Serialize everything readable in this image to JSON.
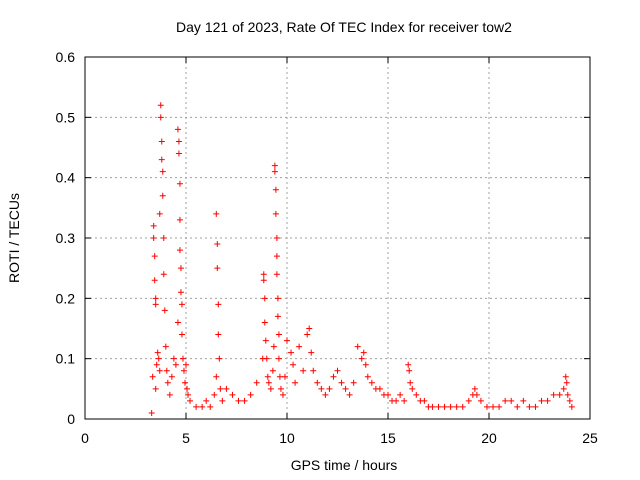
{
  "chart_data": {
    "type": "scatter",
    "title": "Day 121 of 2023, Rate Of TEC Index for receiver tow2",
    "xlabel": "GPS time / hours",
    "ylabel": "ROTI / TECUs",
    "xlim": [
      0,
      25
    ],
    "ylim": [
      0,
      0.6
    ],
    "x_ticks": [
      0,
      5,
      10,
      15,
      20,
      25
    ],
    "x_tick_labels": [
      "0",
      "5",
      "10",
      "15",
      "20",
      "25"
    ],
    "y_ticks": [
      0,
      0.1,
      0.2,
      0.3,
      0.4,
      0.5,
      0.6
    ],
    "y_tick_labels": [
      "0",
      "0.1",
      "0.2",
      "0.3",
      "0.4",
      "0.5",
      "0.6"
    ],
    "grid": true,
    "legend": "none",
    "marker": "plus",
    "color": "#ff0000",
    "series": [
      {
        "x": [
          3.3,
          3.35,
          3.4,
          3.4,
          3.45,
          3.45,
          3.5,
          3.5,
          3.5,
          3.55,
          3.6,
          3.65,
          3.7,
          3.7,
          3.75,
          3.75,
          3.8,
          3.8,
          3.85,
          3.85,
          3.9,
          3.9,
          3.95,
          4.0,
          4.05,
          4.1,
          4.2,
          4.3,
          4.4,
          4.5,
          4.6,
          4.6,
          4.65,
          4.65,
          4.7,
          4.7,
          4.7,
          4.75,
          4.75,
          4.8,
          4.8,
          4.85,
          4.9,
          4.95,
          5.0,
          5.05,
          5.1,
          5.2,
          5.5,
          5.8,
          6.0,
          6.2,
          6.4,
          6.5,
          6.5,
          6.55,
          6.55,
          6.6,
          6.6,
          6.65,
          6.7,
          6.8,
          7.0,
          7.3,
          7.6,
          7.9,
          8.2,
          8.5,
          8.8,
          8.85,
          8.85,
          8.9,
          8.9,
          8.95,
          9.0,
          9.05,
          9.1,
          9.2,
          9.3,
          9.35,
          9.4,
          9.4,
          9.45,
          9.45,
          9.5,
          9.5,
          9.5,
          9.55,
          9.55,
          9.6,
          9.6,
          9.65,
          9.7,
          9.8,
          9.9,
          10.0,
          10.2,
          10.3,
          10.4,
          10.6,
          10.8,
          11.0,
          11.1,
          11.2,
          11.3,
          11.5,
          11.7,
          11.9,
          12.1,
          12.3,
          12.5,
          12.7,
          12.9,
          13.1,
          13.3,
          13.5,
          13.7,
          13.8,
          13.9,
          14.0,
          14.2,
          14.4,
          14.6,
          14.8,
          15.0,
          15.2,
          15.4,
          15.6,
          15.8,
          16.0,
          16.05,
          16.1,
          16.2,
          16.4,
          16.6,
          16.8,
          17.0,
          17.2,
          17.5,
          17.8,
          18.1,
          18.4,
          18.7,
          19.0,
          19.2,
          19.3,
          19.4,
          19.6,
          19.9,
          20.2,
          20.5,
          20.8,
          21.1,
          21.4,
          21.7,
          22.0,
          22.3,
          22.6,
          22.9,
          23.2,
          23.5,
          23.7,
          23.8,
          23.85,
          23.9,
          24.0,
          24.1
        ],
        "y": [
          0.01,
          0.07,
          0.32,
          0.3,
          0.27,
          0.23,
          0.2,
          0.19,
          0.05,
          0.09,
          0.11,
          0.1,
          0.08,
          0.34,
          0.52,
          0.5,
          0.46,
          0.43,
          0.41,
          0.37,
          0.3,
          0.24,
          0.18,
          0.12,
          0.08,
          0.06,
          0.04,
          0.07,
          0.1,
          0.09,
          0.16,
          0.48,
          0.46,
          0.44,
          0.39,
          0.33,
          0.28,
          0.25,
          0.21,
          0.19,
          0.14,
          0.1,
          0.08,
          0.06,
          0.09,
          0.05,
          0.04,
          0.03,
          0.02,
          0.02,
          0.03,
          0.02,
          0.04,
          0.07,
          0.34,
          0.29,
          0.25,
          0.19,
          0.14,
          0.1,
          0.05,
          0.03,
          0.05,
          0.04,
          0.03,
          0.03,
          0.04,
          0.06,
          0.1,
          0.24,
          0.23,
          0.2,
          0.16,
          0.13,
          0.1,
          0.07,
          0.06,
          0.05,
          0.08,
          0.12,
          0.42,
          0.41,
          0.38,
          0.34,
          0.3,
          0.27,
          0.24,
          0.2,
          0.17,
          0.14,
          0.1,
          0.07,
          0.05,
          0.04,
          0.07,
          0.13,
          0.11,
          0.09,
          0.06,
          0.12,
          0.08,
          0.14,
          0.15,
          0.11,
          0.08,
          0.06,
          0.05,
          0.04,
          0.05,
          0.07,
          0.08,
          0.06,
          0.05,
          0.04,
          0.06,
          0.12,
          0.1,
          0.11,
          0.09,
          0.07,
          0.06,
          0.05,
          0.05,
          0.04,
          0.04,
          0.03,
          0.03,
          0.04,
          0.03,
          0.09,
          0.08,
          0.06,
          0.05,
          0.04,
          0.03,
          0.03,
          0.02,
          0.02,
          0.02,
          0.02,
          0.02,
          0.02,
          0.02,
          0.03,
          0.04,
          0.05,
          0.04,
          0.03,
          0.02,
          0.02,
          0.02,
          0.03,
          0.03,
          0.02,
          0.03,
          0.02,
          0.02,
          0.03,
          0.03,
          0.04,
          0.04,
          0.05,
          0.07,
          0.06,
          0.04,
          0.03,
          0.02
        ]
      }
    ]
  }
}
